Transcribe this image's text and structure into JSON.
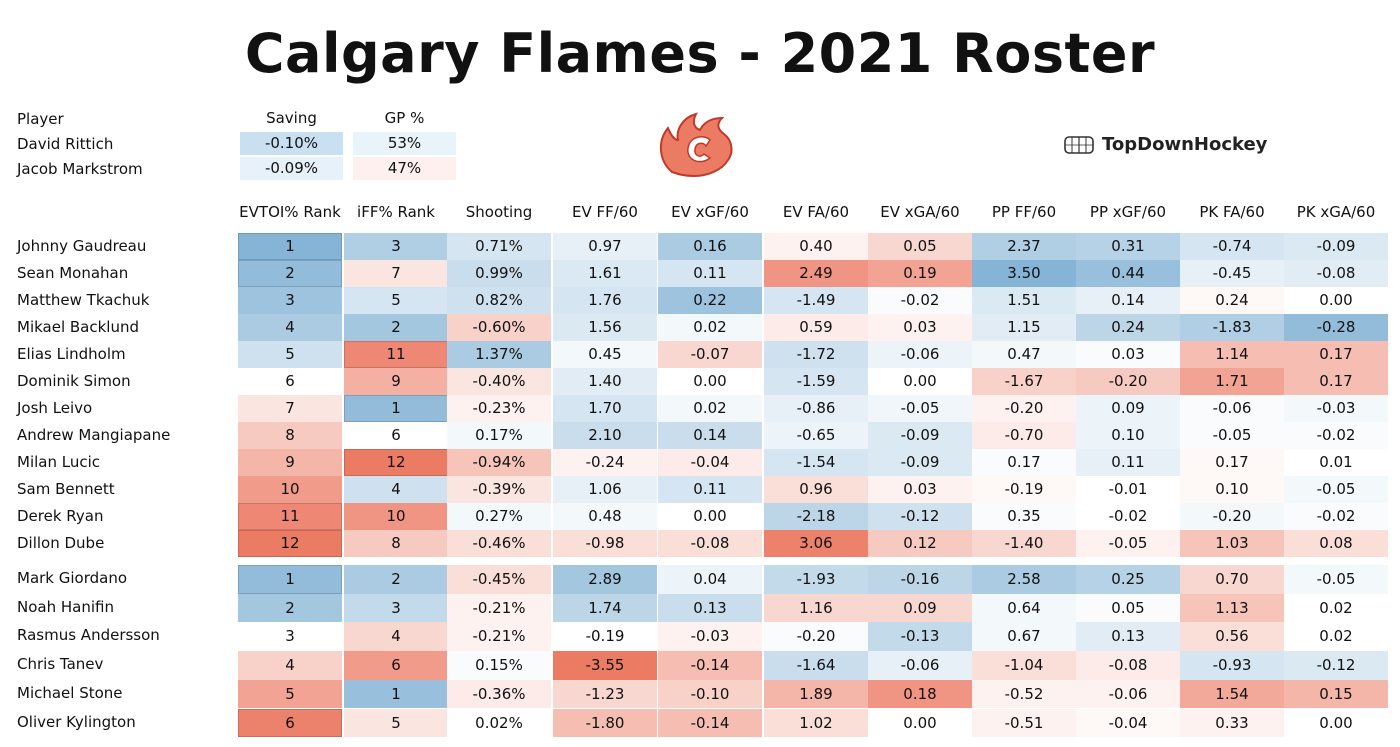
{
  "title": "Calgary Flames - 2021 Roster",
  "brand": "TopDownHockey",
  "goalie_table": {
    "headers": [
      "Player",
      "Saving",
      "GP %"
    ],
    "rows": [
      {
        "name": "David Rittich",
        "saving": "-0.10%",
        "gp": "53%"
      },
      {
        "name": "Jacob Markstrom",
        "saving": "-0.09%",
        "gp": "47%"
      }
    ]
  },
  "colors": {
    "blue_strong": "#86b4d6",
    "blue_light": "#dcecf7",
    "red_strong": "#ec7b64",
    "red_light": "#fbe0dc",
    "white": "#ffffff"
  },
  "chart_data": {
    "type": "table",
    "title": "Calgary Flames - 2021 Roster",
    "columns": [
      "EVTOI% Rank",
      "iFF% Rank",
      "Shooting",
      "EV FF/60",
      "EV xGF/60",
      "EV FA/60",
      "EV xGA/60",
      "PP FF/60",
      "PP xGF/60",
      "PK FA/60",
      "PK xGA/60"
    ],
    "forwards": [
      {
        "name": "Johnny Gaudreau",
        "values": [
          "1",
          "3",
          "0.71%",
          "0.97",
          "0.16",
          "0.40",
          "0.05",
          "2.37",
          "0.31",
          "-0.74",
          "-0.09"
        ],
        "tones": [
          1.0,
          0.65,
          0.35,
          0.2,
          0.7,
          -0.1,
          -0.3,
          0.65,
          0.6,
          0.35,
          0.3
        ]
      },
      {
        "name": "Sean Monahan",
        "values": [
          "2",
          "7",
          "0.99%",
          "1.61",
          "0.11",
          "2.49",
          "0.19",
          "3.50",
          "0.44",
          "-0.45",
          "-0.08"
        ],
        "tones": [
          0.9,
          -0.2,
          0.45,
          0.3,
          0.35,
          -0.8,
          -0.7,
          1.0,
          0.85,
          0.2,
          0.25
        ]
      },
      {
        "name": "Matthew Tkachuk",
        "values": [
          "3",
          "5",
          "0.82%",
          "1.76",
          "0.22",
          "-1.49",
          "-0.02",
          "1.51",
          "0.14",
          "0.24",
          "0.00"
        ],
        "tones": [
          0.8,
          0.35,
          0.4,
          0.35,
          0.8,
          0.35,
          0.05,
          0.3,
          0.2,
          -0.05,
          0.0
        ]
      },
      {
        "name": "Mikael Backlund",
        "values": [
          "4",
          "2",
          "-0.60%",
          "1.56",
          "0.02",
          "0.59",
          "0.03",
          "1.15",
          "0.24",
          "-1.83",
          "-0.28"
        ],
        "tones": [
          0.7,
          0.75,
          -0.35,
          0.3,
          0.1,
          -0.15,
          -0.1,
          0.25,
          0.55,
          0.65,
          0.9
        ]
      },
      {
        "name": "Elias Lindholm",
        "values": [
          "5",
          "11",
          "1.37%",
          "0.45",
          "-0.07",
          "-1.72",
          "-0.06",
          "0.47",
          "0.03",
          "1.14",
          "0.17"
        ],
        "tones": [
          0.4,
          -0.9,
          0.7,
          0.1,
          -0.3,
          0.4,
          0.15,
          0.1,
          0.05,
          -0.5,
          -0.5
        ]
      },
      {
        "name": "Dominik Simon",
        "values": [
          "6",
          "9",
          "-0.40%",
          "1.40",
          "0.00",
          "-1.59",
          "0.00",
          "-1.67",
          "-0.20",
          "1.71",
          "0.17"
        ],
        "tones": [
          0.0,
          -0.6,
          -0.2,
          0.25,
          0.0,
          0.35,
          0.0,
          -0.35,
          -0.4,
          -0.7,
          -0.5
        ]
      },
      {
        "name": "Josh Leivo",
        "values": [
          "7",
          "1",
          "-0.23%",
          "1.70",
          "0.02",
          "-0.86",
          "-0.05",
          "-0.20",
          "0.09",
          "-0.06",
          "-0.03"
        ],
        "tones": [
          -0.2,
          0.9,
          -0.1,
          0.35,
          0.1,
          0.2,
          0.12,
          -0.1,
          0.15,
          0.05,
          0.1
        ]
      },
      {
        "name": "Andrew Mangiapane",
        "values": [
          "8",
          "6",
          "0.17%",
          "2.10",
          "0.14",
          "-0.65",
          "-0.09",
          "-0.70",
          "0.10",
          "-0.05",
          "-0.02"
        ],
        "tones": [
          -0.4,
          0.0,
          0.1,
          0.45,
          0.45,
          0.15,
          0.3,
          -0.15,
          0.15,
          0.05,
          0.05
        ]
      },
      {
        "name": "Milan Lucic",
        "values": [
          "9",
          "12",
          "-0.94%",
          "-0.24",
          "-0.04",
          "-1.54",
          "-0.09",
          "0.17",
          "0.11",
          "0.17",
          "0.01"
        ],
        "tones": [
          -0.55,
          -1.0,
          -0.45,
          -0.1,
          -0.15,
          0.35,
          0.3,
          0.05,
          0.2,
          -0.05,
          0.0
        ]
      },
      {
        "name": "Sam Bennett",
        "values": [
          "10",
          "4",
          "-0.39%",
          "1.06",
          "0.11",
          "0.96",
          "0.03",
          "-0.19",
          "-0.01",
          "0.10",
          "-0.05"
        ],
        "tones": [
          -0.75,
          0.4,
          -0.2,
          0.2,
          0.35,
          -0.25,
          -0.1,
          -0.05,
          0.0,
          -0.05,
          0.1
        ]
      },
      {
        "name": "Derek Ryan",
        "values": [
          "11",
          "10",
          "0.27%",
          "0.48",
          "0.00",
          "-2.18",
          "-0.12",
          "0.35",
          "-0.02",
          "-0.20",
          "-0.02"
        ],
        "tones": [
          -0.9,
          -0.8,
          0.1,
          0.1,
          0.0,
          0.55,
          0.4,
          0.05,
          0.0,
          0.1,
          0.05
        ]
      },
      {
        "name": "Dillon Dube",
        "values": [
          "12",
          "8",
          "-0.46%",
          "-0.98",
          "-0.08",
          "3.06",
          "0.12",
          "-1.40",
          "-0.05",
          "1.03",
          "0.08"
        ],
        "tones": [
          -1.0,
          -0.4,
          -0.25,
          -0.25,
          -0.25,
          -0.95,
          -0.4,
          -0.3,
          -0.1,
          -0.45,
          -0.25
        ]
      }
    ],
    "defense": [
      {
        "name": "Mark Giordano",
        "values": [
          "1",
          "2",
          "-0.45%",
          "2.89",
          "0.04",
          "-1.93",
          "-0.16",
          "2.58",
          "0.25",
          "0.70",
          "-0.05"
        ],
        "tones": [
          0.9,
          0.7,
          -0.25,
          0.75,
          0.15,
          0.5,
          0.55,
          0.7,
          0.6,
          -0.3,
          0.1
        ]
      },
      {
        "name": "Noah Hanifin",
        "values": [
          "2",
          "3",
          "-0.21%",
          "1.74",
          "0.13",
          "1.16",
          "0.09",
          "0.64",
          "0.05",
          "1.13",
          "0.02"
        ],
        "tones": [
          0.75,
          0.5,
          -0.1,
          0.55,
          0.45,
          -0.3,
          -0.3,
          0.1,
          0.05,
          -0.45,
          0.0
        ]
      },
      {
        "name": "Rasmus Andersson",
        "values": [
          "3",
          "4",
          "-0.21%",
          "-0.19",
          "-0.03",
          "-0.20",
          "-0.13",
          "0.67",
          "0.13",
          "0.56",
          "0.02"
        ],
        "tones": [
          0.0,
          -0.3,
          -0.1,
          0.0,
          -0.1,
          0.05,
          0.5,
          0.1,
          0.25,
          -0.25,
          0.0
        ]
      },
      {
        "name": "Chris Tanev",
        "values": [
          "4",
          "6",
          "0.15%",
          "-3.55",
          "-0.14",
          "-1.64",
          "-0.06",
          "-1.04",
          "-0.08",
          "-0.93",
          "-0.12"
        ],
        "tones": [
          -0.35,
          -0.75,
          0.05,
          -1.0,
          -0.5,
          0.45,
          0.2,
          -0.25,
          -0.15,
          0.35,
          0.3
        ]
      },
      {
        "name": "Michael Stone",
        "values": [
          "5",
          "1",
          "-0.36%",
          "-1.23",
          "-0.10",
          "1.89",
          "0.18",
          "-0.52",
          "-0.06",
          "1.54",
          "0.15"
        ],
        "tones": [
          -0.7,
          0.85,
          -0.15,
          -0.3,
          -0.35,
          -0.55,
          -0.8,
          -0.1,
          -0.1,
          -0.65,
          -0.55
        ]
      },
      {
        "name": "Oliver Kylington",
        "values": [
          "6",
          "5",
          "0.02%",
          "-1.80",
          "-0.14",
          "1.02",
          "0.00",
          "-0.51",
          "-0.04",
          "0.33",
          "0.00"
        ],
        "tones": [
          -0.95,
          -0.2,
          0.0,
          -0.5,
          -0.5,
          -0.25,
          0.0,
          -0.1,
          -0.05,
          -0.1,
          0.0
        ]
      }
    ]
  }
}
